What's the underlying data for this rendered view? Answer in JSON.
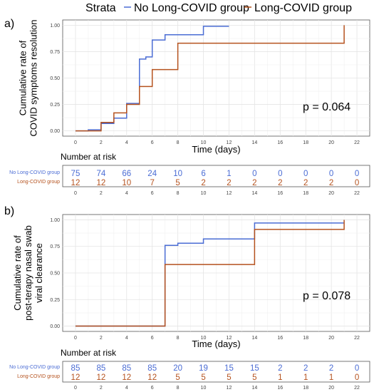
{
  "legend": {
    "title": "Strata",
    "items": [
      {
        "label": "No Long-COVID group",
        "color": "#4A6CD4"
      },
      {
        "label": "Long-COVID group",
        "color": "#B5521E"
      }
    ]
  },
  "chart_data": [
    {
      "type": "line",
      "step": true,
      "panel_label": "a)",
      "title": "",
      "xlabel": "Time (days)",
      "ylabel_lines": [
        "Cumulative rate of",
        "COVID symptoms resolution"
      ],
      "xlim": [
        -1,
        23
      ],
      "ylim": [
        -0.05,
        1.05
      ],
      "x_ticks": [
        0,
        2,
        4,
        6,
        8,
        10,
        12,
        14,
        16,
        18,
        20,
        22
      ],
      "y_ticks": [
        0.0,
        0.25,
        0.5,
        0.75,
        1.0
      ],
      "y_tick_labels": [
        "0.00",
        "0.25",
        "0.50",
        "0.75",
        "1.00"
      ],
      "p_value": "p = 0.064",
      "grid": true,
      "series": [
        {
          "name": "No Long-COVID group",
          "color": "#4A6CD4",
          "x": [
            0,
            1,
            2,
            3,
            4,
            5,
            5.5,
            6,
            7,
            8,
            10,
            12
          ],
          "y": [
            0,
            0.01,
            0.07,
            0.12,
            0.26,
            0.68,
            0.7,
            0.86,
            0.91,
            0.91,
            0.99,
            0.99
          ]
        },
        {
          "name": "Long-COVID group",
          "color": "#B5521E",
          "x": [
            0,
            2,
            3,
            4,
            5,
            6,
            8,
            21,
            21
          ],
          "y": [
            0,
            0.08,
            0.17,
            0.25,
            0.42,
            0.58,
            0.83,
            0.83,
            1.0
          ]
        }
      ],
      "risk_table": {
        "title": "Number at risk",
        "rows": [
          {
            "label": "No Long-COVID group",
            "color": "#4A6CD4",
            "values": [
              "75",
              "74",
              "66",
              "24",
              "10",
              "6",
              "1",
              "0",
              "0",
              "0",
              "0",
              "0"
            ]
          },
          {
            "label": "Long-COVID group",
            "color": "#B5521E",
            "values": [
              "12",
              "12",
              "10",
              "7",
              "5",
              "2",
              "2",
              "2",
              "2",
              "2",
              "2",
              "0"
            ]
          }
        ]
      }
    },
    {
      "type": "line",
      "step": true,
      "panel_label": "b)",
      "title": "",
      "xlabel": "Time (days)",
      "ylabel_lines": [
        "Cumulative rate of",
        "post-terapy nasal swab",
        "viral clearance"
      ],
      "xlim": [
        -1,
        23
      ],
      "ylim": [
        -0.05,
        1.05
      ],
      "x_ticks": [
        0,
        2,
        4,
        6,
        8,
        10,
        12,
        14,
        16,
        18,
        20,
        22
      ],
      "y_ticks": [
        0.0,
        0.25,
        0.5,
        0.75,
        1.0
      ],
      "y_tick_labels": [
        "0.00",
        "0.25",
        "0.50",
        "0.75",
        "1.00"
      ],
      "p_value": "p = 0.078",
      "grid": true,
      "series": [
        {
          "name": "No Long-COVID group",
          "color": "#4A6CD4",
          "x": [
            0,
            7,
            8,
            10,
            14,
            21
          ],
          "y": [
            0,
            0.76,
            0.78,
            0.82,
            0.97,
            0.97
          ]
        },
        {
          "name": "Long-COVID group",
          "color": "#B5521E",
          "x": [
            0,
            7,
            14,
            21,
            21
          ],
          "y": [
            0,
            0.58,
            0.91,
            0.91,
            1.0
          ]
        }
      ],
      "risk_table": {
        "title": "Number at risk",
        "rows": [
          {
            "label": "No Long-COVID group",
            "color": "#4A6CD4",
            "values": [
              "85",
              "85",
              "85",
              "85",
              "20",
              "19",
              "15",
              "15",
              "2",
              "2",
              "2",
              "0"
            ]
          },
          {
            "label": "Long-COVID group",
            "color": "#B5521E",
            "values": [
              "12",
              "12",
              "12",
              "12",
              "5",
              "5",
              "5",
              "5",
              "1",
              "1",
              "1",
              "0"
            ]
          }
        ]
      }
    }
  ]
}
